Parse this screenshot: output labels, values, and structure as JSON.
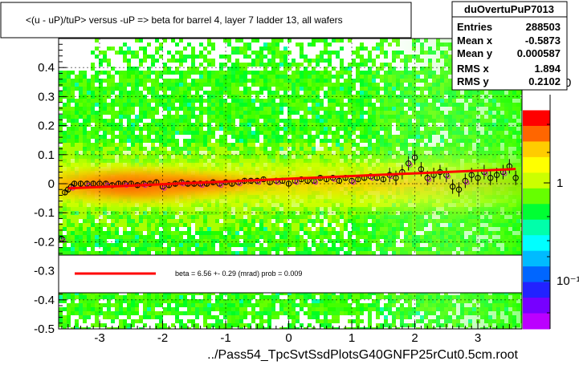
{
  "chart_data": {
    "type": "scatter",
    "title": "<(u - uP)/tuP> versus  -uP => beta for barrel 4, layer 7 ladder 13, all wafers",
    "xlabel": "../Pass54_TpcSvtSsdPlotsG40GNFP25rCut0.5cm.root",
    "ylabel": "",
    "xlim": [
      -3.65,
      3.7
    ],
    "ylim": [
      -0.5,
      0.5
    ],
    "xticks": [
      -3,
      -2,
      -1,
      0,
      1,
      2,
      3
    ],
    "xtick_labels": [
      "-3",
      "-2",
      "-1",
      "0",
      "1",
      "2",
      "3"
    ],
    "yticks": [
      -0.5,
      -0.4,
      -0.3,
      -0.2,
      -0.1,
      0,
      0.1,
      0.2,
      0.3,
      0.4
    ],
    "ytick_labels": [
      "-0.5",
      "-0.4",
      "-0.3",
      "-0.2",
      "-0.1",
      "0",
      "0.1",
      "0.2",
      "0.3",
      "0.4"
    ],
    "grid": true,
    "colorbar": {
      "scale": "log",
      "tick_labels": [
        "1",
        "10⁻¹"
      ],
      "colors": [
        "#ffffff",
        "#ff0000",
        "#ff6600",
        "#ffcc00",
        "#ffff00",
        "#ccff00",
        "#66ff00",
        "#00ff33",
        "#00ffaa",
        "#00ffff",
        "#00bbff",
        "#0066ff",
        "#2222ff",
        "#7700ff",
        "#bb00ff"
      ]
    },
    "stats": {
      "name": "duOvertuPuP7013",
      "entries_label": "Entries",
      "entries": "288503",
      "mean_x_label": "Mean x",
      "mean_x": "-0.5873",
      "mean_y_label": "Mean y",
      "mean_y": "0.000587",
      "rms_x_label": "RMS x",
      "rms_x": "1.894",
      "rms_y_label": "RMS y",
      "rms_y": "0.2102"
    },
    "fit": {
      "label": "beta =    6.56 +-  0.29 (mrad) prob = 0.009",
      "slope": 0.00656,
      "intercept": 0.007,
      "color": "#ff0000"
    },
    "profile_points": {
      "x": [
        -3.6,
        -3.55,
        -3.5,
        -3.45,
        -3.4,
        -3.3,
        -3.2,
        -3.1,
        -3.0,
        -2.9,
        -2.8,
        -2.7,
        -2.6,
        -2.5,
        -2.4,
        -2.3,
        -2.2,
        -2.1,
        -2.0,
        -1.9,
        -1.8,
        -1.7,
        -1.6,
        -1.5,
        -1.4,
        -1.3,
        -1.2,
        -1.1,
        -1.0,
        -0.9,
        -0.8,
        -0.7,
        -0.6,
        -0.5,
        -0.4,
        -0.3,
        -0.2,
        -0.1,
        0.0,
        0.1,
        0.2,
        0.3,
        0.4,
        0.5,
        0.6,
        0.7,
        0.8,
        0.9,
        1.0,
        1.1,
        1.2,
        1.3,
        1.4,
        1.5,
        1.6,
        1.7,
        1.8,
        1.9,
        2.0,
        2.1,
        2.2,
        2.3,
        2.4,
        2.5,
        2.6,
        2.7,
        2.8,
        2.9,
        3.0,
        3.1,
        3.2,
        3.3,
        3.4,
        3.5,
        3.6
      ],
      "y": [
        -0.19,
        -0.03,
        -0.02,
        -0.01,
        0.0,
        0.0,
        0.0,
        0.0,
        0.0,
        0.0,
        -0.005,
        0.0,
        0.0,
        0.0,
        -0.005,
        0.0,
        0.0,
        0.005,
        -0.01,
        -0.005,
        0.0,
        0.005,
        0.0,
        0.0,
        0.0,
        0.0,
        0.005,
        0.0,
        0.005,
        0.0,
        0.005,
        0.01,
        0.01,
        0.01,
        0.015,
        0.005,
        0.01,
        0.01,
        0.0,
        0.01,
        0.015,
        0.01,
        0.01,
        0.02,
        0.015,
        0.02,
        0.01,
        0.02,
        0.01,
        0.015,
        0.02,
        0.025,
        0.02,
        0.015,
        0.03,
        0.02,
        0.04,
        0.07,
        0.09,
        0.05,
        0.02,
        0.03,
        0.04,
        0.03,
        -0.01,
        -0.02,
        0.01,
        0.03,
        0.02,
        0.04,
        0.02,
        0.03,
        0.04,
        0.06,
        0.02
      ]
    }
  }
}
